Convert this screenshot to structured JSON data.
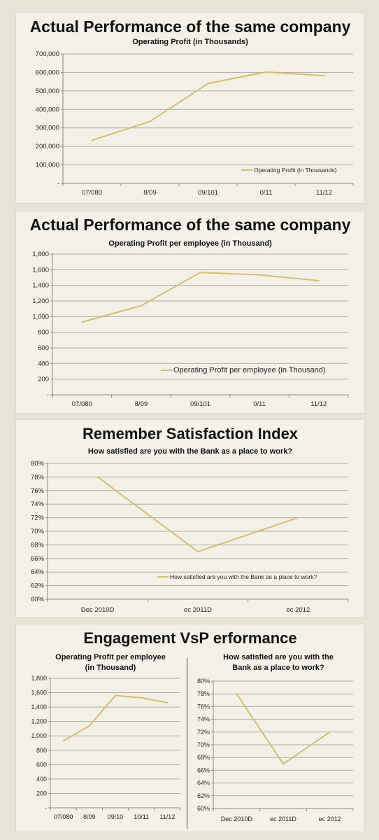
{
  "colors": {
    "series": "#d4bd6a",
    "grid": "#a9a9a9",
    "axis": "#888888",
    "background": "#e6e4d6",
    "panel": "#f3f1e8"
  },
  "panels": [
    {
      "title": "Actual Performance of the same company"
    },
    {
      "title": "Actual Performance of the same company"
    },
    {
      "title": "Remember Satisfaction Index"
    },
    {
      "title": "Engagement VsP erformance"
    }
  ],
  "chart_data": [
    {
      "type": "line",
      "title": "Operating Profit (in Thousands)",
      "categories": [
        "07/080",
        "8/09",
        "09/101",
        "0/11",
        "11/12"
      ],
      "series": [
        {
          "name": "Operating Profit (in Thousands)",
          "values": [
            233000,
            335000,
            540000,
            602000,
            582000
          ]
        }
      ],
      "ylim": [
        0,
        700000
      ],
      "yticks": [
        "-",
        "100,000",
        "200,000",
        "300,000",
        "400,000",
        "500,000",
        "600,000",
        "700,000"
      ],
      "grid": true,
      "legend": "bottom-right"
    },
    {
      "type": "line",
      "title": "Operating Profit per employee (in Thousand)",
      "categories": [
        "07/080",
        "8/09",
        "09/101",
        "0/11",
        "11/12"
      ],
      "series": [
        {
          "name": "Operating Profit per employee (in Thousand)",
          "values": [
            930,
            1140,
            1565,
            1535,
            1460
          ]
        }
      ],
      "ylim": [
        0,
        1800
      ],
      "yticks": [
        "-",
        "200",
        "400",
        "600",
        "800",
        "1,000",
        "1,200",
        "1,400",
        "1,600",
        "1,800"
      ],
      "grid": true,
      "legend": "bottom-right"
    },
    {
      "type": "line",
      "title": "How satisfied are you with the Bank as a place to work?",
      "categories": [
        "Dec 2010D",
        "ec 2011D",
        "ec 2012"
      ],
      "series": [
        {
          "name": "How satisfied are you with the Bank as a place to work?",
          "values": [
            78,
            67,
            72
          ]
        }
      ],
      "ylim": [
        60,
        80
      ],
      "yticks": [
        "60%",
        "62%",
        "64%",
        "66%",
        "68%",
        "70%",
        "72%",
        "74%",
        "76%",
        "78%",
        "80%"
      ],
      "grid": true,
      "legend": "bottom-right"
    },
    {
      "type": "line",
      "title": "Operating Profit per employee (in Thousand)",
      "title_lines": [
        "Operating Profit per employee",
        "(in Thousand)"
      ],
      "categories": [
        "07/080",
        "8/09",
        "09/10",
        "10/11",
        "11/12"
      ],
      "series": [
        {
          "values": [
            930,
            1140,
            1560,
            1530,
            1460
          ]
        }
      ],
      "ylim": [
        0,
        1800
      ],
      "yticks": [
        "-",
        "200",
        "400",
        "600",
        "800",
        "1,000",
        "1,200",
        "1,400",
        "1,600",
        "1,800"
      ],
      "grid": true
    },
    {
      "type": "line",
      "title": "How satisfied are you with the Bank as a place to work?",
      "title_lines": [
        "How satisfied are you with the",
        "Bank as a place to work?"
      ],
      "categories": [
        "Dec 2010D",
        "ec 2011D",
        "ec 2012"
      ],
      "series": [
        {
          "values": [
            78,
            67,
            72
          ]
        }
      ],
      "ylim": [
        60,
        80
      ],
      "yticks": [
        "60%",
        "62%",
        "64%",
        "66%",
        "68%",
        "70%",
        "72%",
        "74%",
        "76%",
        "78%",
        "80%"
      ],
      "grid": true
    }
  ]
}
